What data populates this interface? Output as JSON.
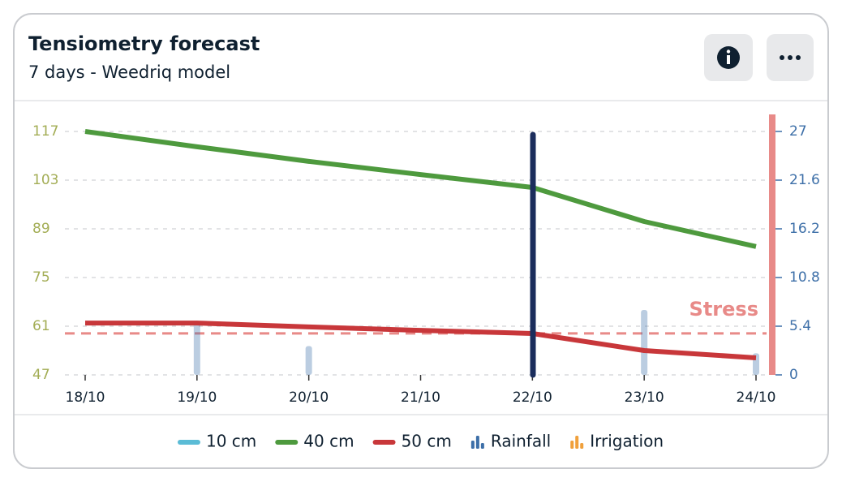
{
  "chart_data": {
    "type": "line",
    "title": "Tensiometry forecast",
    "subtitle": "7 days - Weedriq model",
    "categories": [
      "18/10",
      "19/10",
      "20/10",
      "21/10",
      "22/10",
      "23/10",
      "24/10"
    ],
    "ylim": [
      47,
      117
    ],
    "yticks": [
      47,
      61,
      75,
      89,
      103,
      117
    ],
    "y2lim": [
      0,
      27
    ],
    "y2ticks": [
      0,
      5.4,
      10.8,
      16.2,
      21.6,
      27
    ],
    "grid": true,
    "legend": "bottom",
    "stress": {
      "label": "Stress",
      "value": 4.6,
      "axis": "y2",
      "color": "#e88a88"
    },
    "series": [
      {
        "name": "10 cm",
        "type": "line",
        "color": "#5bbcd6",
        "values": [
          null,
          null,
          null,
          null,
          null,
          null,
          null
        ]
      },
      {
        "name": "40 cm",
        "type": "line",
        "color": "#4e9a3e",
        "values": [
          117,
          112.6,
          108.4,
          104.6,
          100.9,
          91.1,
          83.9
        ]
      },
      {
        "name": "50 cm",
        "type": "line",
        "color": "#c8373a",
        "values": [
          61.9,
          61.9,
          60.8,
          59.8,
          58.9,
          54,
          51.9
        ]
      },
      {
        "name": "Rainfall",
        "type": "bar",
        "axis": "y2",
        "color": "#3d6fa8",
        "values": [
          null,
          6.0,
          3.2,
          null,
          null,
          7.2,
          2.4
        ]
      },
      {
        "name": "Irrigation",
        "type": "bar",
        "axis": "y2",
        "color": "#f0a03c",
        "values": [
          null,
          null,
          null,
          null,
          null,
          null,
          null
        ]
      }
    ]
  }
}
